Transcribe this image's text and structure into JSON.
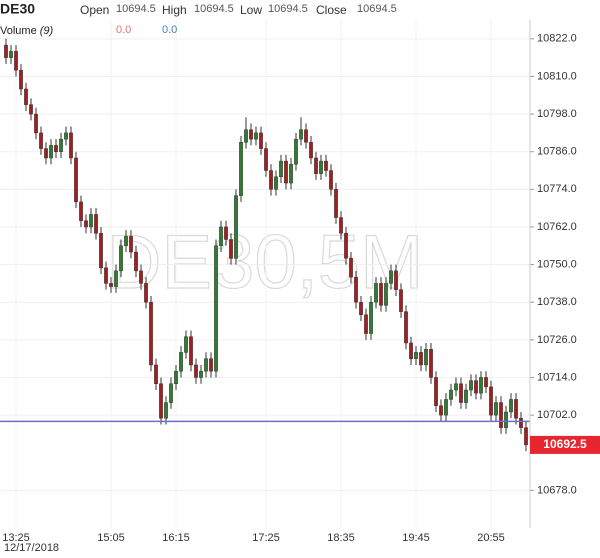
{
  "chart_data": {
    "type": "candlestick",
    "title": "DE30",
    "ohlc_header": [
      {
        "label": "Open",
        "value": 10694.5
      },
      {
        "label": "High",
        "value": 10694.5
      },
      {
        "label": "Low",
        "value": 10694.5
      },
      {
        "label": "Close",
        "value": 10694.5
      }
    ],
    "volume_name": "Volume",
    "volume_period": "(9)",
    "volume_values": [
      {
        "text": "0.0",
        "color": "#e57373"
      },
      {
        "text": "0.0",
        "color": "#4a78c2"
      }
    ],
    "watermark": "DE30,5M",
    "date_label": "12/17/2018",
    "up_color": "#2e7d32",
    "down_color": "#a31f1f",
    "ylim": [
      10666,
      10828
    ],
    "yticks": [
      {
        "value": 10822,
        "label": "10822.0"
      },
      {
        "value": 10810,
        "label": "10810.0"
      },
      {
        "value": 10798,
        "label": "10798.0"
      },
      {
        "value": 10786,
        "label": "10786.0"
      },
      {
        "value": 10774,
        "label": "10774.0"
      },
      {
        "value": 10762,
        "label": "10762.0"
      },
      {
        "value": 10750,
        "label": "10750.0"
      },
      {
        "value": 10738,
        "label": "10738.0"
      },
      {
        "value": 10726,
        "label": "10726.0"
      },
      {
        "value": 10714,
        "label": "10714.0"
      },
      {
        "value": 10702,
        "label": "10702.0"
      },
      {
        "value": 10678,
        "label": "10678.0"
      }
    ],
    "grid": true,
    "reference_line": 10700,
    "reference_color": "#6a6fc9",
    "last_price": 10692.5,
    "last_price_color": "#e8262f",
    "categories": [
      null,
      null,
      "13:25",
      null,
      null,
      null,
      null,
      null,
      null,
      null,
      null,
      null,
      null,
      null,
      null,
      null,
      null,
      null,
      null,
      null,
      null,
      "15:05",
      null,
      null,
      null,
      null,
      null,
      null,
      null,
      null,
      null,
      null,
      null,
      null,
      "16:15",
      null,
      null,
      null,
      null,
      null,
      null,
      null,
      null,
      null,
      null,
      null,
      null,
      null,
      null,
      null,
      null,
      null,
      "17:25",
      null,
      null,
      null,
      null,
      null,
      null,
      null,
      null,
      null,
      null,
      null,
      null,
      null,
      null,
      "18:35",
      null,
      null,
      null,
      null,
      null,
      null,
      null,
      null,
      null,
      null,
      null,
      null,
      null,
      null,
      "19:45",
      null,
      null,
      null,
      null,
      null,
      null,
      null,
      null,
      null,
      null,
      null,
      null,
      null,
      null,
      "20:55",
      null,
      null,
      null,
      null,
      null,
      null,
      null
    ],
    "open": [
      10820,
      10816,
      10818,
      10812,
      10806,
      10801,
      10798,
      10792,
      10787,
      10784,
      10788,
      10786,
      10790,
      10792,
      10784,
      10770,
      10764,
      10762,
      10766,
      10760,
      10749,
      10744,
      10743,
      10748,
      10756,
      10759,
      10754,
      10748,
      10744,
      10738,
      10718,
      10712,
      10701,
      10706,
      10712,
      10716,
      10722,
      10727,
      10718,
      10714,
      10716,
      10720,
      10716,
      10756,
      10762,
      10758,
      10752,
      10772,
      10789,
      10793,
      10790,
      10792,
      10787,
      10780,
      10774,
      10778,
      10783,
      10776,
      10782,
      10790,
      10793,
      10789,
      10784,
      10779,
      10783,
      10780,
      10774,
      10765,
      10760,
      10752,
      10746,
      10738,
      10734,
      10728,
      10738,
      10744,
      10737,
      10744,
      10748,
      10742,
      10735,
      10725,
      10720,
      10722,
      10718,
      10723,
      10714,
      10705,
      10702,
      10707,
      10710,
      10712,
      10706,
      10710,
      10713,
      10709,
      10714,
      10711,
      10702,
      10706,
      10698,
      10703,
      10707,
      10701,
      10698
    ],
    "high": [
      10822,
      10820,
      10820,
      10814,
      10808,
      10803,
      10800,
      10794,
      10789,
      10790,
      10790,
      10792,
      10794,
      10794,
      10786,
      10772,
      10766,
      10768,
      10768,
      10762,
      10751,
      10746,
      10750,
      10758,
      10761,
      10761,
      10756,
      10750,
      10746,
      10740,
      10720,
      10714,
      10708,
      10714,
      10718,
      10724,
      10729,
      10729,
      10720,
      10718,
      10722,
      10722,
      10758,
      10764,
      10764,
      10760,
      10774,
      10791,
      10797,
      10795,
      10794,
      10794,
      10789,
      10782,
      10780,
      10785,
      10785,
      10784,
      10792,
      10797,
      10795,
      10791,
      10786,
      10785,
      10785,
      10782,
      10776,
      10767,
      10762,
      10754,
      10748,
      10740,
      10736,
      10740,
      10746,
      10746,
      10746,
      10750,
      10750,
      10744,
      10737,
      10727,
      10724,
      10724,
      10725,
      10725,
      10716,
      10707,
      10709,
      10712,
      10714,
      10714,
      10712,
      10715,
      10715,
      10716,
      10716,
      10713,
      10708,
      10708,
      10705,
      10709,
      10709,
      10703,
      10700
    ],
    "low": [
      10814,
      10814,
      10810,
      10804,
      10799,
      10796,
      10790,
      10785,
      10782,
      10782,
      10784,
      10784,
      10788,
      10782,
      10768,
      10762,
      10760,
      10760,
      10758,
      10747,
      10742,
      10741,
      10741,
      10746,
      10754,
      10752,
      10746,
      10742,
      10736,
      10716,
      10710,
      10699,
      10699,
      10704,
      10710,
      10714,
      10720,
      10716,
      10712,
      10712,
      10714,
      10714,
      10714,
      10754,
      10756,
      10750,
      10750,
      10770,
      10787,
      10788,
      10788,
      10785,
      10778,
      10772,
      10772,
      10776,
      10774,
      10774,
      10780,
      10788,
      10787,
      10782,
      10777,
      10777,
      10778,
      10772,
      10763,
      10758,
      10750,
      10744,
      10736,
      10732,
      10726,
      10726,
      10736,
      10735,
      10735,
      10742,
      10740,
      10733,
      10723,
      10718,
      10718,
      10716,
      10716,
      10712,
      10703,
      10700,
      10700,
      10705,
      10708,
      10704,
      10704,
      10708,
      10707,
      10707,
      10709,
      10700,
      10700,
      10696,
      10696,
      10701,
      10699,
      10696,
      10690.5
    ],
    "close": [
      10816,
      10818,
      10812,
      10806,
      10801,
      10798,
      10792,
      10787,
      10784,
      10788,
      10786,
      10790,
      10792,
      10784,
      10770,
      10764,
      10762,
      10766,
      10760,
      10749,
      10744,
      10743,
      10748,
      10756,
      10759,
      10754,
      10748,
      10744,
      10738,
      10718,
      10712,
      10701,
      10706,
      10712,
      10716,
      10722,
      10727,
      10718,
      10714,
      10716,
      10720,
      10716,
      10756,
      10762,
      10758,
      10752,
      10772,
      10789,
      10793,
      10790,
      10792,
      10787,
      10780,
      10774,
      10778,
      10783,
      10776,
      10782,
      10790,
      10793,
      10789,
      10784,
      10779,
      10783,
      10780,
      10774,
      10765,
      10760,
      10752,
      10746,
      10738,
      10734,
      10728,
      10738,
      10744,
      10737,
      10744,
      10748,
      10742,
      10735,
      10725,
      10720,
      10722,
      10718,
      10723,
      10714,
      10705,
      10702,
      10707,
      10710,
      10712,
      10706,
      10710,
      10713,
      10709,
      10714,
      10711,
      10702,
      10706,
      10698,
      10703,
      10707,
      10701,
      10698,
      10692.5
    ]
  }
}
